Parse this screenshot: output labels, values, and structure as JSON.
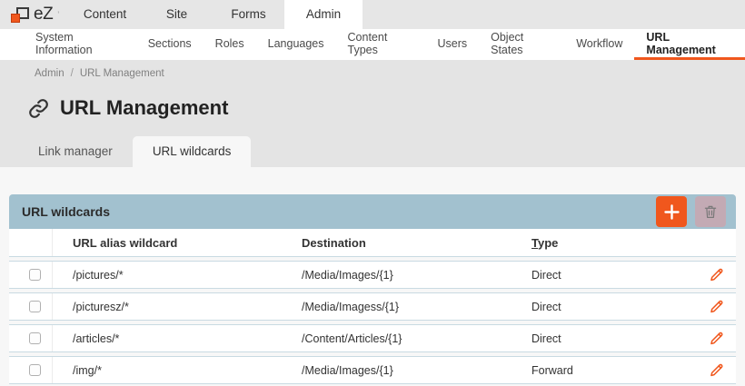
{
  "colors": {
    "accent": "#f0571d",
    "panel_header": "#a2c1cf",
    "row_border": "#c9dae2",
    "topbar_bg": "#e6e6e6",
    "section_bg": "#e4e4e4",
    "content_bg": "#f7f7f7",
    "trash_disabled_bg": "#c3aab4"
  },
  "brand": {
    "logo_text": "eZ",
    "logo_mark": "’"
  },
  "topbar": {
    "items": [
      {
        "label": "Content",
        "active": false
      },
      {
        "label": "Site",
        "active": false
      },
      {
        "label": "Forms",
        "active": false
      },
      {
        "label": "Admin",
        "active": true
      }
    ]
  },
  "subnav": {
    "items": [
      {
        "label": "System Information",
        "active": false
      },
      {
        "label": "Sections",
        "active": false
      },
      {
        "label": "Roles",
        "active": false
      },
      {
        "label": "Languages",
        "active": false
      },
      {
        "label": "Content Types",
        "active": false
      },
      {
        "label": "Users",
        "active": false
      },
      {
        "label": "Object States",
        "active": false
      },
      {
        "label": "Workflow",
        "active": false
      },
      {
        "label": "URL Management",
        "active": true
      }
    ]
  },
  "breadcrumb": {
    "items": [
      "Admin",
      "URL Management"
    ],
    "separator": "/"
  },
  "page": {
    "title": "URL Management"
  },
  "tabs": [
    {
      "label": "Link manager",
      "active": false
    },
    {
      "label": "URL wildcards",
      "active": true
    }
  ],
  "panel": {
    "title": "URL wildcards"
  },
  "table": {
    "headers": [
      {
        "label": "URL alias wildcard",
        "underline_first": false
      },
      {
        "label": "Destination",
        "underline_first": false
      },
      {
        "label": "Type",
        "underline_first": true
      }
    ],
    "rows": [
      {
        "wildcard": "/pictures/*",
        "destination": "/Media/Images/{1}",
        "type": "Direct"
      },
      {
        "wildcard": "/picturesz/*",
        "destination": "/Media/Imagess/{1}",
        "type": "Direct"
      },
      {
        "wildcard": "/articles/*",
        "destination": "/Content/Articles/{1}",
        "type": "Direct"
      },
      {
        "wildcard": "/img/*",
        "destination": "/Media/Images/{1}",
        "type": "Forward"
      }
    ]
  }
}
